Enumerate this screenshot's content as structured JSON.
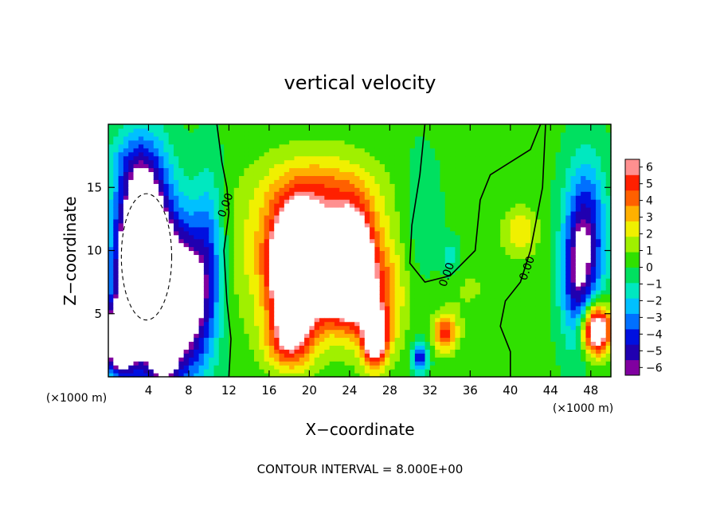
{
  "chart_data": {
    "type": "heatmap",
    "title": "vertical velocity",
    "xlabel": "X−coordinate",
    "ylabel": "Z−coordinate",
    "x_unit_left": "(×1000 m)",
    "x_unit_right": "(×1000 m)",
    "footer": "CONTOUR INTERVAL = 8.000E+00",
    "xlim": [
      0,
      50
    ],
    "ylim": [
      0,
      20
    ],
    "x_ticks": [
      4,
      8,
      12,
      16,
      20,
      24,
      28,
      32,
      36,
      40,
      44,
      48
    ],
    "y_ticks": [
      5,
      10,
      15
    ],
    "x_tick_labels": [
      "4",
      "8",
      "12",
      "16",
      "20",
      "24",
      "28",
      "32",
      "36",
      "40",
      "44",
      "48"
    ],
    "y_tick_labels": [
      "5",
      "10",
      "15"
    ],
    "colorbar": {
      "levels": [
        -6,
        -5,
        -4,
        -3,
        -2,
        -1,
        0,
        1,
        2,
        3,
        4,
        5,
        6
      ],
      "labels": [
        "6",
        "5",
        "4",
        "3",
        "2",
        "1",
        "0",
        "−1",
        "−2",
        "−3",
        "−4",
        "−5",
        "−6"
      ],
      "colors": [
        "#8000a0",
        "#2000b0",
        "#0010e0",
        "#0070ff",
        "#00c0ff",
        "#00e8c0",
        "#00e060",
        "#30e000",
        "#a0f000",
        "#f0f000",
        "#ffb000",
        "#ff6000",
        "#ff2000",
        "#ff9090"
      ],
      "over_color": "#ffffff"
    },
    "contour_labels": [
      {
        "text": "0.00",
        "x": 12.0,
        "z": 13.5
      },
      {
        "text": "0.00",
        "x": 34.0,
        "z": 8.0
      },
      {
        "text": "0.00",
        "x": 42.0,
        "z": 8.5
      }
    ]
  }
}
